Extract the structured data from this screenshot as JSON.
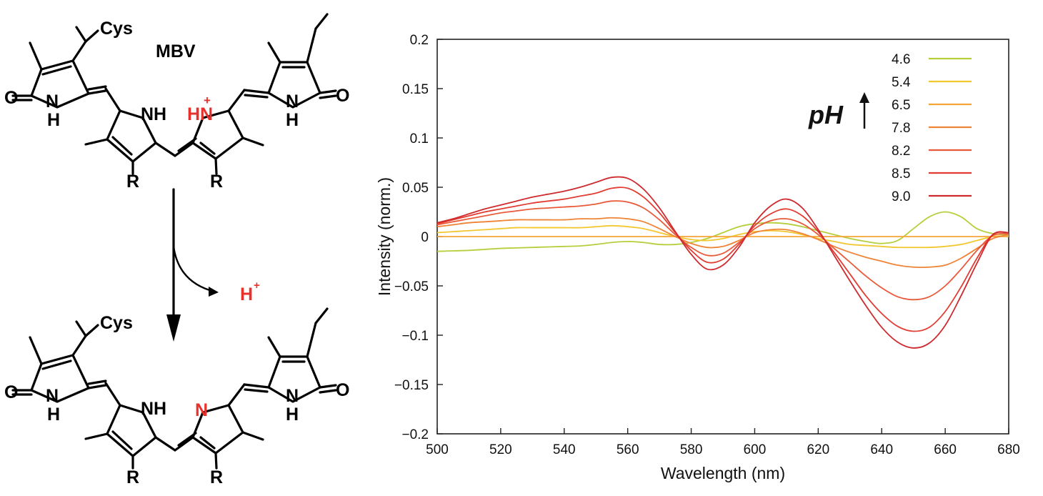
{
  "scheme": {
    "top_label": "MBV",
    "substituent_cys": "Cys",
    "substituent_r": "R",
    "atom_o": "O",
    "atom_n": "N",
    "atom_h": "H",
    "atom_nh": "NH",
    "atom_hn": "HN",
    "charge_plus": "+",
    "released_proton": "H",
    "colors": {
      "highlight": "#e8312a",
      "bond": "#000000"
    }
  },
  "chart_data": {
    "type": "line",
    "xlabel": "Wavelength (nm)",
    "ylabel": "Intensity (norm.)",
    "xlim": [
      500,
      680
    ],
    "ylim": [
      -0.2,
      0.2
    ],
    "x_ticks": [
      "500",
      "520",
      "540",
      "560",
      "580",
      "600",
      "620",
      "640",
      "660",
      "680"
    ],
    "y_ticks": [
      "−0.2",
      "−0.15",
      "−0.1",
      "−0.05",
      "0",
      "0.05",
      "0.1",
      "0.15",
      "0.2"
    ],
    "legend_position": "top-right",
    "annotation": {
      "text": "pH",
      "arrow": "up"
    },
    "x": [
      500,
      505,
      510,
      515,
      520,
      525,
      530,
      535,
      540,
      545,
      550,
      555,
      560,
      565,
      570,
      575,
      580,
      585,
      590,
      595,
      600,
      605,
      610,
      615,
      620,
      625,
      630,
      635,
      640,
      645,
      650,
      655,
      660,
      665,
      670,
      675,
      680
    ],
    "series": [
      {
        "name": "4.6",
        "color": "#b5cf3c",
        "values": [
          -0.015,
          -0.0145,
          -0.014,
          -0.013,
          -0.012,
          -0.0115,
          -0.011,
          -0.0105,
          -0.01,
          -0.0095,
          -0.008,
          -0.006,
          -0.005,
          -0.006,
          -0.008,
          -0.008,
          -0.006,
          -0.002,
          0.004,
          0.01,
          0.013,
          0.014,
          0.013,
          0.01,
          0.006,
          0.002,
          -0.002,
          -0.005,
          -0.007,
          -0.004,
          0.008,
          0.02,
          0.025,
          0.02,
          0.008,
          0.003,
          0.002
        ]
      },
      {
        "name": "5.4",
        "color": "#f2c72f",
        "values": [
          0.004,
          0.005,
          0.006,
          0.007,
          0.008,
          0.009,
          0.009,
          0.009,
          0.009,
          0.009,
          0.01,
          0.011,
          0.01,
          0.008,
          0.004,
          0,
          -0.003,
          -0.004,
          -0.002,
          0.002,
          0.005,
          0.006,
          0.005,
          0.002,
          -0.002,
          -0.005,
          -0.008,
          -0.009,
          -0.01,
          -0.011,
          -0.011,
          -0.011,
          -0.01,
          -0.008,
          -0.004,
          0,
          0.001
        ]
      },
      {
        "name": "6.5",
        "color": "#f4a53a",
        "values": [
          0,
          0,
          0,
          0,
          0,
          0,
          0,
          0,
          0,
          0,
          0,
          0,
          0,
          0,
          0,
          0,
          0,
          0,
          0,
          0,
          0,
          0,
          0,
          0,
          0,
          0,
          0,
          0,
          0,
          0,
          0,
          0,
          0,
          0,
          0,
          0,
          0
        ]
      },
      {
        "name": "7.8",
        "color": "#ef8336",
        "values": [
          0.01,
          0.012,
          0.014,
          0.015,
          0.016,
          0.017,
          0.017,
          0.017,
          0.017,
          0.018,
          0.018,
          0.019,
          0.018,
          0.015,
          0.008,
          0,
          -0.007,
          -0.011,
          -0.01,
          -0.004,
          0.004,
          0.007,
          0.007,
          0.003,
          -0.003,
          -0.01,
          -0.016,
          -0.021,
          -0.025,
          -0.029,
          -0.031,
          -0.031,
          -0.029,
          -0.022,
          -0.012,
          -0.002,
          0.002
        ]
      },
      {
        "name": "8.2",
        "color": "#e95a3a",
        "values": [
          0.012,
          0.015,
          0.018,
          0.021,
          0.024,
          0.026,
          0.028,
          0.029,
          0.03,
          0.031,
          0.033,
          0.036,
          0.035,
          0.029,
          0.017,
          0.002,
          -0.011,
          -0.019,
          -0.017,
          -0.006,
          0.008,
          0.016,
          0.018,
          0.013,
          0.002,
          -0.012,
          -0.026,
          -0.04,
          -0.052,
          -0.061,
          -0.064,
          -0.061,
          -0.05,
          -0.033,
          -0.014,
          0.001,
          0.003
        ]
      },
      {
        "name": "8.5",
        "color": "#e13d32",
        "values": [
          0.013,
          0.017,
          0.021,
          0.025,
          0.028,
          0.031,
          0.034,
          0.036,
          0.038,
          0.041,
          0.044,
          0.049,
          0.049,
          0.04,
          0.024,
          0.004,
          -0.014,
          -0.026,
          -0.023,
          -0.008,
          0.011,
          0.023,
          0.028,
          0.021,
          0.005,
          -0.016,
          -0.038,
          -0.06,
          -0.078,
          -0.091,
          -0.096,
          -0.092,
          -0.076,
          -0.051,
          -0.022,
          0.002,
          0.004
        ]
      },
      {
        "name": "9.0",
        "color": "#cf2a2e",
        "values": [
          0.014,
          0.018,
          0.023,
          0.028,
          0.032,
          0.036,
          0.04,
          0.043,
          0.046,
          0.05,
          0.055,
          0.06,
          0.059,
          0.048,
          0.029,
          0.005,
          -0.018,
          -0.033,
          -0.029,
          -0.011,
          0.014,
          0.031,
          0.038,
          0.029,
          0.007,
          -0.019,
          -0.045,
          -0.07,
          -0.092,
          -0.107,
          -0.113,
          -0.108,
          -0.09,
          -0.06,
          -0.027,
          0.002,
          0.004
        ]
      }
    ]
  }
}
